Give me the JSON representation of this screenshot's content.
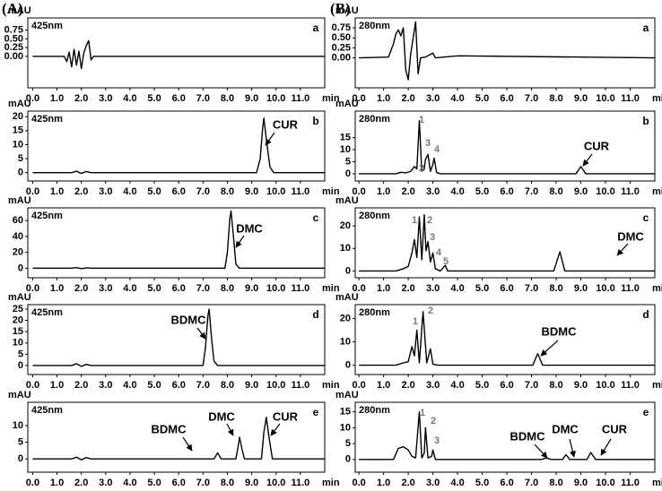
{
  "figure_labels": [
    "(A)",
    "(B)"
  ],
  "chart_data": [
    {
      "type": "line",
      "panel_label": "a",
      "subtitle": "425nm",
      "y_label": "mAU",
      "x_label": "min",
      "color": "#000000",
      "xlim": [
        -0.2,
        12
      ],
      "ylim": [
        -0.9,
        1.1
      ],
      "xticks": [
        {
          "value": 0,
          "label": "0.0"
        },
        {
          "value": 1,
          "label": "1.0"
        },
        {
          "value": 2,
          "label": "2.0"
        },
        {
          "value": 3,
          "label": "3.0"
        },
        {
          "value": 4,
          "label": "4.0"
        },
        {
          "value": 5,
          "label": "5.0"
        },
        {
          "value": 6,
          "label": "6.0"
        },
        {
          "value": 7,
          "label": "7.0"
        },
        {
          "value": 8,
          "label": "8.0"
        },
        {
          "value": 9,
          "label": "9.0"
        },
        {
          "value": 10,
          "label": "10.0"
        },
        {
          "value": 11,
          "label": "11.0"
        }
      ],
      "yticks": [
        {
          "value": 0,
          "label": "0.00"
        },
        {
          "value": 0.25,
          "label": "0.25"
        },
        {
          "value": 0.5,
          "label": "0.50"
        },
        {
          "value": 0.75,
          "label": "0.75"
        }
      ],
      "x": [
        0,
        1.3,
        1.4,
        1.5,
        1.6,
        1.7,
        1.8,
        1.9,
        2.0,
        2.1,
        2.2,
        2.3,
        2.4,
        2.5,
        3.0,
        12
      ],
      "values": [
        0,
        0,
        -0.15,
        0.12,
        -0.3,
        0.2,
        -0.25,
        0.15,
        -0.35,
        0.1,
        0.3,
        0.45,
        -0.1,
        0,
        0,
        0
      ],
      "annotations": [],
      "peak_labels": []
    },
    {
      "type": "line",
      "panel_label": "b",
      "subtitle": "425nm",
      "y_label": "mAU",
      "x_label": "min",
      "color": "#000000",
      "xlim": [
        -0.2,
        12
      ],
      "ylim": [
        -3,
        22
      ],
      "xticks": [
        {
          "value": 0,
          "label": "0.0"
        },
        {
          "value": 1,
          "label": "1.0"
        },
        {
          "value": 2,
          "label": "2.0"
        },
        {
          "value": 3,
          "label": "3.0"
        },
        {
          "value": 4,
          "label": "4.0"
        },
        {
          "value": 5,
          "label": "5.0"
        },
        {
          "value": 6,
          "label": "6.0"
        },
        {
          "value": 7,
          "label": "7.0"
        },
        {
          "value": 8,
          "label": "8.0"
        },
        {
          "value": 9,
          "label": "9.0"
        },
        {
          "value": 10,
          "label": "10.0"
        },
        {
          "value": 11,
          "label": "11.0"
        }
      ],
      "yticks": [
        0,
        5,
        10,
        15,
        20
      ],
      "x": [
        0,
        1.6,
        1.8,
        2.0,
        2.2,
        2.4,
        9.2,
        9.35,
        9.45,
        9.5,
        9.6,
        9.75,
        9.9,
        12
      ],
      "values": [
        0,
        0,
        0.5,
        -0.3,
        0.4,
        0,
        0,
        5,
        16,
        19.5,
        12,
        2,
        0,
        0
      ],
      "annotations": [
        "CUR"
      ],
      "peak_labels": []
    },
    {
      "type": "line",
      "panel_label": "c",
      "subtitle": "425nm",
      "y_label": "mAU",
      "x_label": "min",
      "color": "#000000",
      "xlim": [
        -0.2,
        12
      ],
      "ylim": [
        -12,
        76
      ],
      "xticks": [
        {
          "value": 0,
          "label": "0.0"
        },
        {
          "value": 1,
          "label": "1.0"
        },
        {
          "value": 2,
          "label": "2.0"
        },
        {
          "value": 3,
          "label": "3.0"
        },
        {
          "value": 4,
          "label": "4.0"
        },
        {
          "value": 5,
          "label": "5.0"
        },
        {
          "value": 6,
          "label": "6.0"
        },
        {
          "value": 7,
          "label": "7.0"
        },
        {
          "value": 8,
          "label": "8.0"
        },
        {
          "value": 9,
          "label": "9.0"
        },
        {
          "value": 10,
          "label": "10.0"
        },
        {
          "value": 11,
          "label": "11.0"
        }
      ],
      "yticks": [
        0,
        20,
        40,
        60
      ],
      "x": [
        0,
        1.6,
        1.8,
        2.0,
        2.2,
        2.4,
        7.9,
        8.0,
        8.1,
        8.15,
        8.25,
        8.35,
        8.5,
        12
      ],
      "values": [
        0,
        0,
        0.8,
        -0.5,
        0.5,
        0,
        0,
        20,
        62,
        72,
        40,
        5,
        0,
        0
      ],
      "annotations": [
        "DMC"
      ],
      "peak_labels": []
    },
    {
      "type": "line",
      "panel_label": "d",
      "subtitle": "425nm",
      "y_label": "mAU",
      "x_label": "min",
      "color": "#000000",
      "xlim": [
        -0.2,
        12
      ],
      "ylim": [
        -4,
        27
      ],
      "xticks": [
        {
          "value": 0,
          "label": "0.0"
        },
        {
          "value": 1,
          "label": "1.0"
        },
        {
          "value": 2,
          "label": "2.0"
        },
        {
          "value": 3,
          "label": "3.0"
        },
        {
          "value": 4,
          "label": "4.0"
        },
        {
          "value": 5,
          "label": "5.0"
        },
        {
          "value": 6,
          "label": "6.0"
        },
        {
          "value": 7,
          "label": "7.0"
        },
        {
          "value": 8,
          "label": "8.0"
        },
        {
          "value": 9,
          "label": "9.0"
        },
        {
          "value": 10,
          "label": "10.0"
        },
        {
          "value": 11,
          "label": "11.0"
        }
      ],
      "yticks": [
        0,
        5,
        10,
        15,
        20,
        25
      ],
      "x": [
        0,
        1.6,
        1.8,
        2.0,
        2.2,
        2.4,
        7.0,
        7.1,
        7.2,
        7.25,
        7.35,
        7.45,
        7.6,
        12
      ],
      "values": [
        0,
        0,
        0.8,
        -0.4,
        0.5,
        0,
        0,
        8,
        22,
        25,
        12,
        2,
        0,
        0
      ],
      "annotations": [
        "BDMC"
      ],
      "peak_labels": []
    },
    {
      "type": "line",
      "panel_label": "e",
      "subtitle": "425nm",
      "y_label": "mAU",
      "x_label": "min",
      "color": "#000000",
      "xlim": [
        -0.2,
        12
      ],
      "ylim": [
        -4,
        17
      ],
      "xticks": [
        {
          "value": 0,
          "label": "0.0"
        },
        {
          "value": 1,
          "label": "1.0"
        },
        {
          "value": 2,
          "label": "2.0"
        },
        {
          "value": 3,
          "label": "3.0"
        },
        {
          "value": 4,
          "label": "4.0"
        },
        {
          "value": 5,
          "label": "5.0"
        },
        {
          "value": 6,
          "label": "6.0"
        },
        {
          "value": 7,
          "label": "7.0"
        },
        {
          "value": 8,
          "label": "8.0"
        },
        {
          "value": 9,
          "label": "9.0"
        },
        {
          "value": 10,
          "label": "10.0"
        },
        {
          "value": 11,
          "label": "11.0"
        }
      ],
      "yticks": [
        0,
        5,
        10
      ],
      "x": [
        0,
        1.6,
        1.8,
        2.0,
        2.2,
        2.4,
        7.45,
        7.6,
        7.75,
        8.35,
        8.45,
        8.5,
        8.6,
        8.7,
        9.4,
        9.5,
        9.6,
        9.7,
        9.85,
        12
      ],
      "values": [
        0,
        0,
        0.5,
        -0.3,
        0.4,
        0,
        0,
        1.8,
        0,
        0,
        4,
        6.5,
        3,
        0,
        0,
        8,
        12.5,
        7,
        0,
        0
      ],
      "annotations": [
        "BDMC",
        "DMC",
        "CUR"
      ],
      "peak_labels": []
    },
    {
      "type": "line",
      "panel_label": "a",
      "subtitle": "280nm",
      "y_label": "mAU",
      "x_label": "min",
      "color": "#000000",
      "xlim": [
        -0.15,
        12
      ],
      "ylim": [
        -0.75,
        1.0
      ],
      "xticks": [
        {
          "value": 0,
          "label": "0.0"
        },
        {
          "value": 1,
          "label": "1.0"
        },
        {
          "value": 2,
          "label": "2.0"
        },
        {
          "value": 3,
          "label": "3.0"
        },
        {
          "value": 4,
          "label": "4.0"
        },
        {
          "value": 5,
          "label": "5.0"
        },
        {
          "value": 6,
          "label": "6.0"
        },
        {
          "value": 7,
          "label": "7.0"
        },
        {
          "value": 8,
          "label": "8.0"
        },
        {
          "value": 9,
          "label": "9.0"
        },
        {
          "value": 10,
          "label": "10.0"
        },
        {
          "value": 11,
          "label": "11.0"
        }
      ],
      "yticks": [
        {
          "value": 0,
          "label": "0.00"
        },
        {
          "value": 0.25,
          "label": "0.25"
        },
        {
          "value": 0.5,
          "label": "0.50"
        },
        {
          "value": 0.75,
          "label": "0.75"
        }
      ],
      "x": [
        0,
        1.2,
        1.4,
        1.5,
        1.6,
        1.7,
        1.8,
        1.9,
        2.0,
        2.1,
        2.2,
        2.3,
        2.4,
        2.5,
        2.7,
        3.0,
        3.1,
        4.0,
        12
      ],
      "values": [
        0,
        0.02,
        0.35,
        0.6,
        0.7,
        0.55,
        0.75,
        -0.3,
        -0.55,
        0.1,
        0.5,
        0.9,
        -0.4,
        0,
        0.02,
        0.12,
        0,
        0.05,
        0
      ],
      "annotations": [],
      "peak_labels": []
    },
    {
      "type": "line",
      "panel_label": "b",
      "subtitle": "280nm",
      "y_label": "mAU",
      "x_label": "min",
      "color": "#000000",
      "xlim": [
        -0.15,
        12
      ],
      "ylim": [
        -3,
        26
      ],
      "xticks": [
        {
          "value": 0,
          "label": "0.0"
        },
        {
          "value": 1,
          "label": "1.0"
        },
        {
          "value": 2,
          "label": "2.0"
        },
        {
          "value": 3,
          "label": "3.0"
        },
        {
          "value": 4,
          "label": "4.0"
        },
        {
          "value": 5,
          "label": "5.0"
        },
        {
          "value": 6,
          "label": "6.0"
        },
        {
          "value": 7,
          "label": "7.0"
        },
        {
          "value": 8,
          "label": "8.0"
        },
        {
          "value": 9,
          "label": "9.0"
        },
        {
          "value": 10,
          "label": "10.0"
        },
        {
          "value": 11,
          "label": "11.0"
        }
      ],
      "yticks": [
        0,
        5,
        10,
        15
      ],
      "x": [
        0,
        1.5,
        1.7,
        1.9,
        2.1,
        2.25,
        2.35,
        2.45,
        2.55,
        2.65,
        2.7,
        2.8,
        2.9,
        3.0,
        3.05,
        3.15,
        3.3,
        8.8,
        9.0,
        9.2,
        12
      ],
      "values": [
        0,
        0,
        0.6,
        0.4,
        1,
        3,
        2,
        22,
        1,
        2,
        6,
        8,
        1,
        4,
        6.5,
        0.5,
        0,
        0,
        3,
        0,
        0
      ],
      "annotations": [
        "CUR"
      ],
      "peak_labels": [
        "1",
        "2",
        "3",
        "4"
      ]
    },
    {
      "type": "line",
      "panel_label": "c",
      "subtitle": "280nm",
      "y_label": "mAU",
      "x_label": "min",
      "color": "#000000",
      "xlim": [
        -0.15,
        12
      ],
      "ylim": [
        -3,
        28
      ],
      "xticks": [
        {
          "value": 0,
          "label": "0.0"
        },
        {
          "value": 1,
          "label": "1.0"
        },
        {
          "value": 2,
          "label": "2.0"
        },
        {
          "value": 3,
          "label": "3.0"
        },
        {
          "value": 4,
          "label": "4.0"
        },
        {
          "value": 5,
          "label": "5.0"
        },
        {
          "value": 6,
          "label": "6.0"
        },
        {
          "value": 7,
          "label": "7.0"
        },
        {
          "value": 8,
          "label": "8.0"
        },
        {
          "value": 9,
          "label": "9.0"
        },
        {
          "value": 10,
          "label": "10.0"
        },
        {
          "value": 11,
          "label": "11.0"
        }
      ],
      "yticks": [
        0,
        10,
        20
      ],
      "x": [
        0,
        1.5,
        1.8,
        2.0,
        2.15,
        2.25,
        2.35,
        2.45,
        2.55,
        2.65,
        2.72,
        2.8,
        2.9,
        3.0,
        3.1,
        3.3,
        3.5,
        3.6,
        7.9,
        8.15,
        8.35,
        12
      ],
      "values": [
        0,
        0,
        1,
        2,
        8,
        14,
        6,
        24,
        5,
        25,
        9,
        13,
        4,
        8,
        1,
        0,
        2.5,
        0,
        0,
        8.5,
        0,
        0
      ],
      "annotations": [
        "DMC"
      ],
      "peak_labels": [
        "1",
        "2",
        "3",
        "4",
        "5"
      ]
    },
    {
      "type": "line",
      "panel_label": "d",
      "subtitle": "280nm",
      "y_label": "mAU",
      "x_label": "min",
      "color": "#000000",
      "xlim": [
        -0.15,
        12
      ],
      "ylim": [
        -4,
        26
      ],
      "xticks": [
        {
          "value": 0,
          "label": "0.0"
        },
        {
          "value": 1,
          "label": "1.0"
        },
        {
          "value": 2,
          "label": "2.0"
        },
        {
          "value": 3,
          "label": "3.0"
        },
        {
          "value": 4,
          "label": "4.0"
        },
        {
          "value": 5,
          "label": "5.0"
        },
        {
          "value": 6,
          "label": "6.0"
        },
        {
          "value": 7,
          "label": "7.0"
        },
        {
          "value": 8,
          "label": "8.0"
        },
        {
          "value": 9,
          "label": "9.0"
        },
        {
          "value": 10,
          "label": "10.0"
        },
        {
          "value": 11,
          "label": "11.0"
        }
      ],
      "yticks": [
        0,
        10,
        20
      ],
      "x": [
        0,
        1.5,
        1.8,
        2.0,
        2.15,
        2.25,
        2.35,
        2.45,
        2.6,
        2.75,
        2.9,
        3.0,
        3.2,
        7.05,
        7.25,
        7.45,
        12
      ],
      "values": [
        0,
        0,
        1,
        1.5,
        8,
        4,
        15,
        1,
        23,
        1,
        7,
        0.5,
        0,
        0,
        5,
        0,
        0
      ],
      "annotations": [
        "BDMC"
      ],
      "peak_labels": [
        "1",
        "2"
      ]
    },
    {
      "type": "line",
      "panel_label": "e",
      "subtitle": "280nm",
      "y_label": "mAU",
      "x_label": "min",
      "color": "#000000",
      "xlim": [
        -0.15,
        12
      ],
      "ylim": [
        -4,
        18
      ],
      "xticks": [
        {
          "value": 0,
          "label": "0.0"
        },
        {
          "value": 1,
          "label": "1.0"
        },
        {
          "value": 2,
          "label": "2.0"
        },
        {
          "value": 3,
          "label": "3.0"
        },
        {
          "value": 4,
          "label": "4.0"
        },
        {
          "value": 5,
          "label": "5.0"
        },
        {
          "value": 6,
          "label": "6.0"
        },
        {
          "value": 7,
          "label": "7.0"
        },
        {
          "value": 8,
          "label": "8.0"
        },
        {
          "value": 9,
          "label": "9.0"
        },
        {
          "value": 10,
          "label": "10.0"
        },
        {
          "value": 11,
          "label": "11.0"
        }
      ],
      "yticks": [
        0,
        5,
        10,
        15
      ],
      "x": [
        0,
        1.4,
        1.6,
        1.8,
        2.0,
        2.15,
        2.3,
        2.45,
        2.55,
        2.65,
        2.7,
        2.8,
        2.95,
        3.0,
        3.1,
        7.4,
        7.6,
        7.8,
        8.25,
        8.4,
        8.55,
        9.25,
        9.4,
        9.6,
        12
      ],
      "values": [
        0,
        0,
        3.5,
        4,
        3,
        1,
        0.5,
        15,
        0.5,
        2,
        10,
        0.5,
        1,
        3,
        0,
        0,
        0.5,
        0,
        0,
        1.5,
        0,
        0,
        2.2,
        0,
        0
      ],
      "annotations": [
        "BDMC",
        "DMC",
        "CUR"
      ],
      "peak_labels": [
        "1",
        "2",
        "3"
      ]
    }
  ]
}
